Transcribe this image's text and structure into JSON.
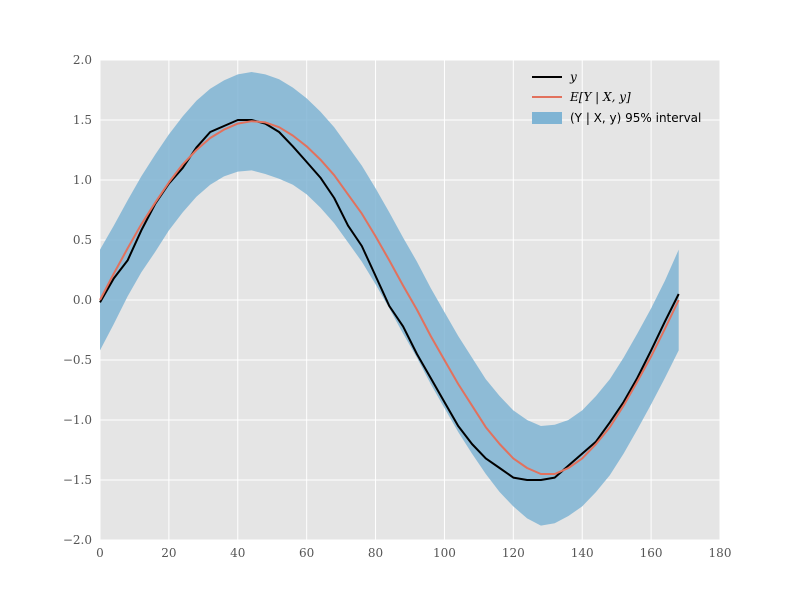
{
  "chart_data": {
    "type": "line",
    "title": "",
    "xlabel": "",
    "ylabel": "",
    "xlim": [
      0,
      180
    ],
    "ylim": [
      -2.0,
      2.0
    ],
    "grid": true,
    "legend_position": "top-right",
    "x_ticks": [
      0,
      20,
      40,
      60,
      80,
      100,
      120,
      140,
      160,
      180
    ],
    "y_ticks": [
      -2.0,
      -1.5,
      -1.0,
      -0.5,
      0.0,
      0.5,
      1.0,
      1.5,
      2.0
    ],
    "x_tick_labels": [
      "0",
      "20",
      "40",
      "60",
      "80",
      "100",
      "120",
      "140",
      "160",
      "180"
    ],
    "y_tick_labels": [
      "−2.0",
      "−1.5",
      "−1.0",
      "−0.5",
      "0.0",
      "0.5",
      "1.0",
      "1.5",
      "2.0"
    ],
    "x_points": [
      0,
      4,
      8,
      12,
      16,
      20,
      24,
      28,
      32,
      36,
      40,
      44,
      48,
      52,
      56,
      60,
      64,
      68,
      72,
      76,
      80,
      84,
      88,
      92,
      96,
      100,
      104,
      108,
      112,
      116,
      120,
      124,
      128,
      132,
      136,
      140,
      144,
      148,
      152,
      156,
      160,
      164,
      168
    ],
    "series": [
      {
        "name": "y",
        "style": "line",
        "color": "#000000",
        "values": [
          -0.02,
          0.18,
          0.33,
          0.58,
          0.8,
          0.97,
          1.1,
          1.27,
          1.4,
          1.45,
          1.5,
          1.5,
          1.47,
          1.4,
          1.28,
          1.15,
          1.02,
          0.85,
          0.62,
          0.45,
          0.2,
          -0.05,
          -0.22,
          -0.45,
          -0.65,
          -0.85,
          -1.05,
          -1.2,
          -1.32,
          -1.4,
          -1.48,
          -1.5,
          -1.5,
          -1.48,
          -1.38,
          -1.28,
          -1.18,
          -1.02,
          -0.85,
          -0.65,
          -0.42,
          -0.18,
          0.05
        ]
      },
      {
        "name": "E[Y | X, y]",
        "style": "line",
        "color": "#e2715d",
        "values": [
          0.0,
          0.22,
          0.43,
          0.63,
          0.81,
          0.98,
          1.13,
          1.25,
          1.35,
          1.42,
          1.47,
          1.49,
          1.48,
          1.44,
          1.37,
          1.28,
          1.17,
          1.04,
          0.88,
          0.72,
          0.53,
          0.33,
          0.12,
          -0.08,
          -0.3,
          -0.5,
          -0.7,
          -0.88,
          -1.06,
          -1.2,
          -1.32,
          -1.4,
          -1.45,
          -1.45,
          -1.4,
          -1.32,
          -1.2,
          -1.06,
          -0.88,
          -0.68,
          -0.47,
          -0.24,
          0.0
        ]
      },
      {
        "name": "(Y | X, y) 95% interval",
        "style": "band",
        "color": "#7fb4d4",
        "lower": [
          -0.42,
          -0.2,
          0.03,
          0.23,
          0.4,
          0.58,
          0.73,
          0.86,
          0.96,
          1.03,
          1.07,
          1.08,
          1.05,
          1.01,
          0.96,
          0.88,
          0.77,
          0.64,
          0.48,
          0.32,
          0.13,
          -0.07,
          -0.28,
          -0.48,
          -0.7,
          -0.9,
          -1.1,
          -1.28,
          -1.45,
          -1.6,
          -1.72,
          -1.82,
          -1.88,
          -1.86,
          -1.8,
          -1.72,
          -1.6,
          -1.46,
          -1.28,
          -1.08,
          -0.87,
          -0.65,
          -0.42
        ],
        "upper": [
          0.42,
          0.62,
          0.83,
          1.03,
          1.21,
          1.38,
          1.53,
          1.66,
          1.76,
          1.83,
          1.88,
          1.9,
          1.88,
          1.84,
          1.77,
          1.68,
          1.57,
          1.44,
          1.28,
          1.12,
          0.93,
          0.73,
          0.52,
          0.32,
          0.1,
          -0.1,
          -0.3,
          -0.48,
          -0.66,
          -0.8,
          -0.92,
          -1.0,
          -1.05,
          -1.04,
          -1.0,
          -0.92,
          -0.8,
          -0.66,
          -0.48,
          -0.28,
          -0.07,
          0.16,
          0.42
        ]
      }
    ],
    "legend_entries": [
      "y",
      "E[Y | X, y]",
      "(Y | X, y) 95% interval"
    ]
  }
}
